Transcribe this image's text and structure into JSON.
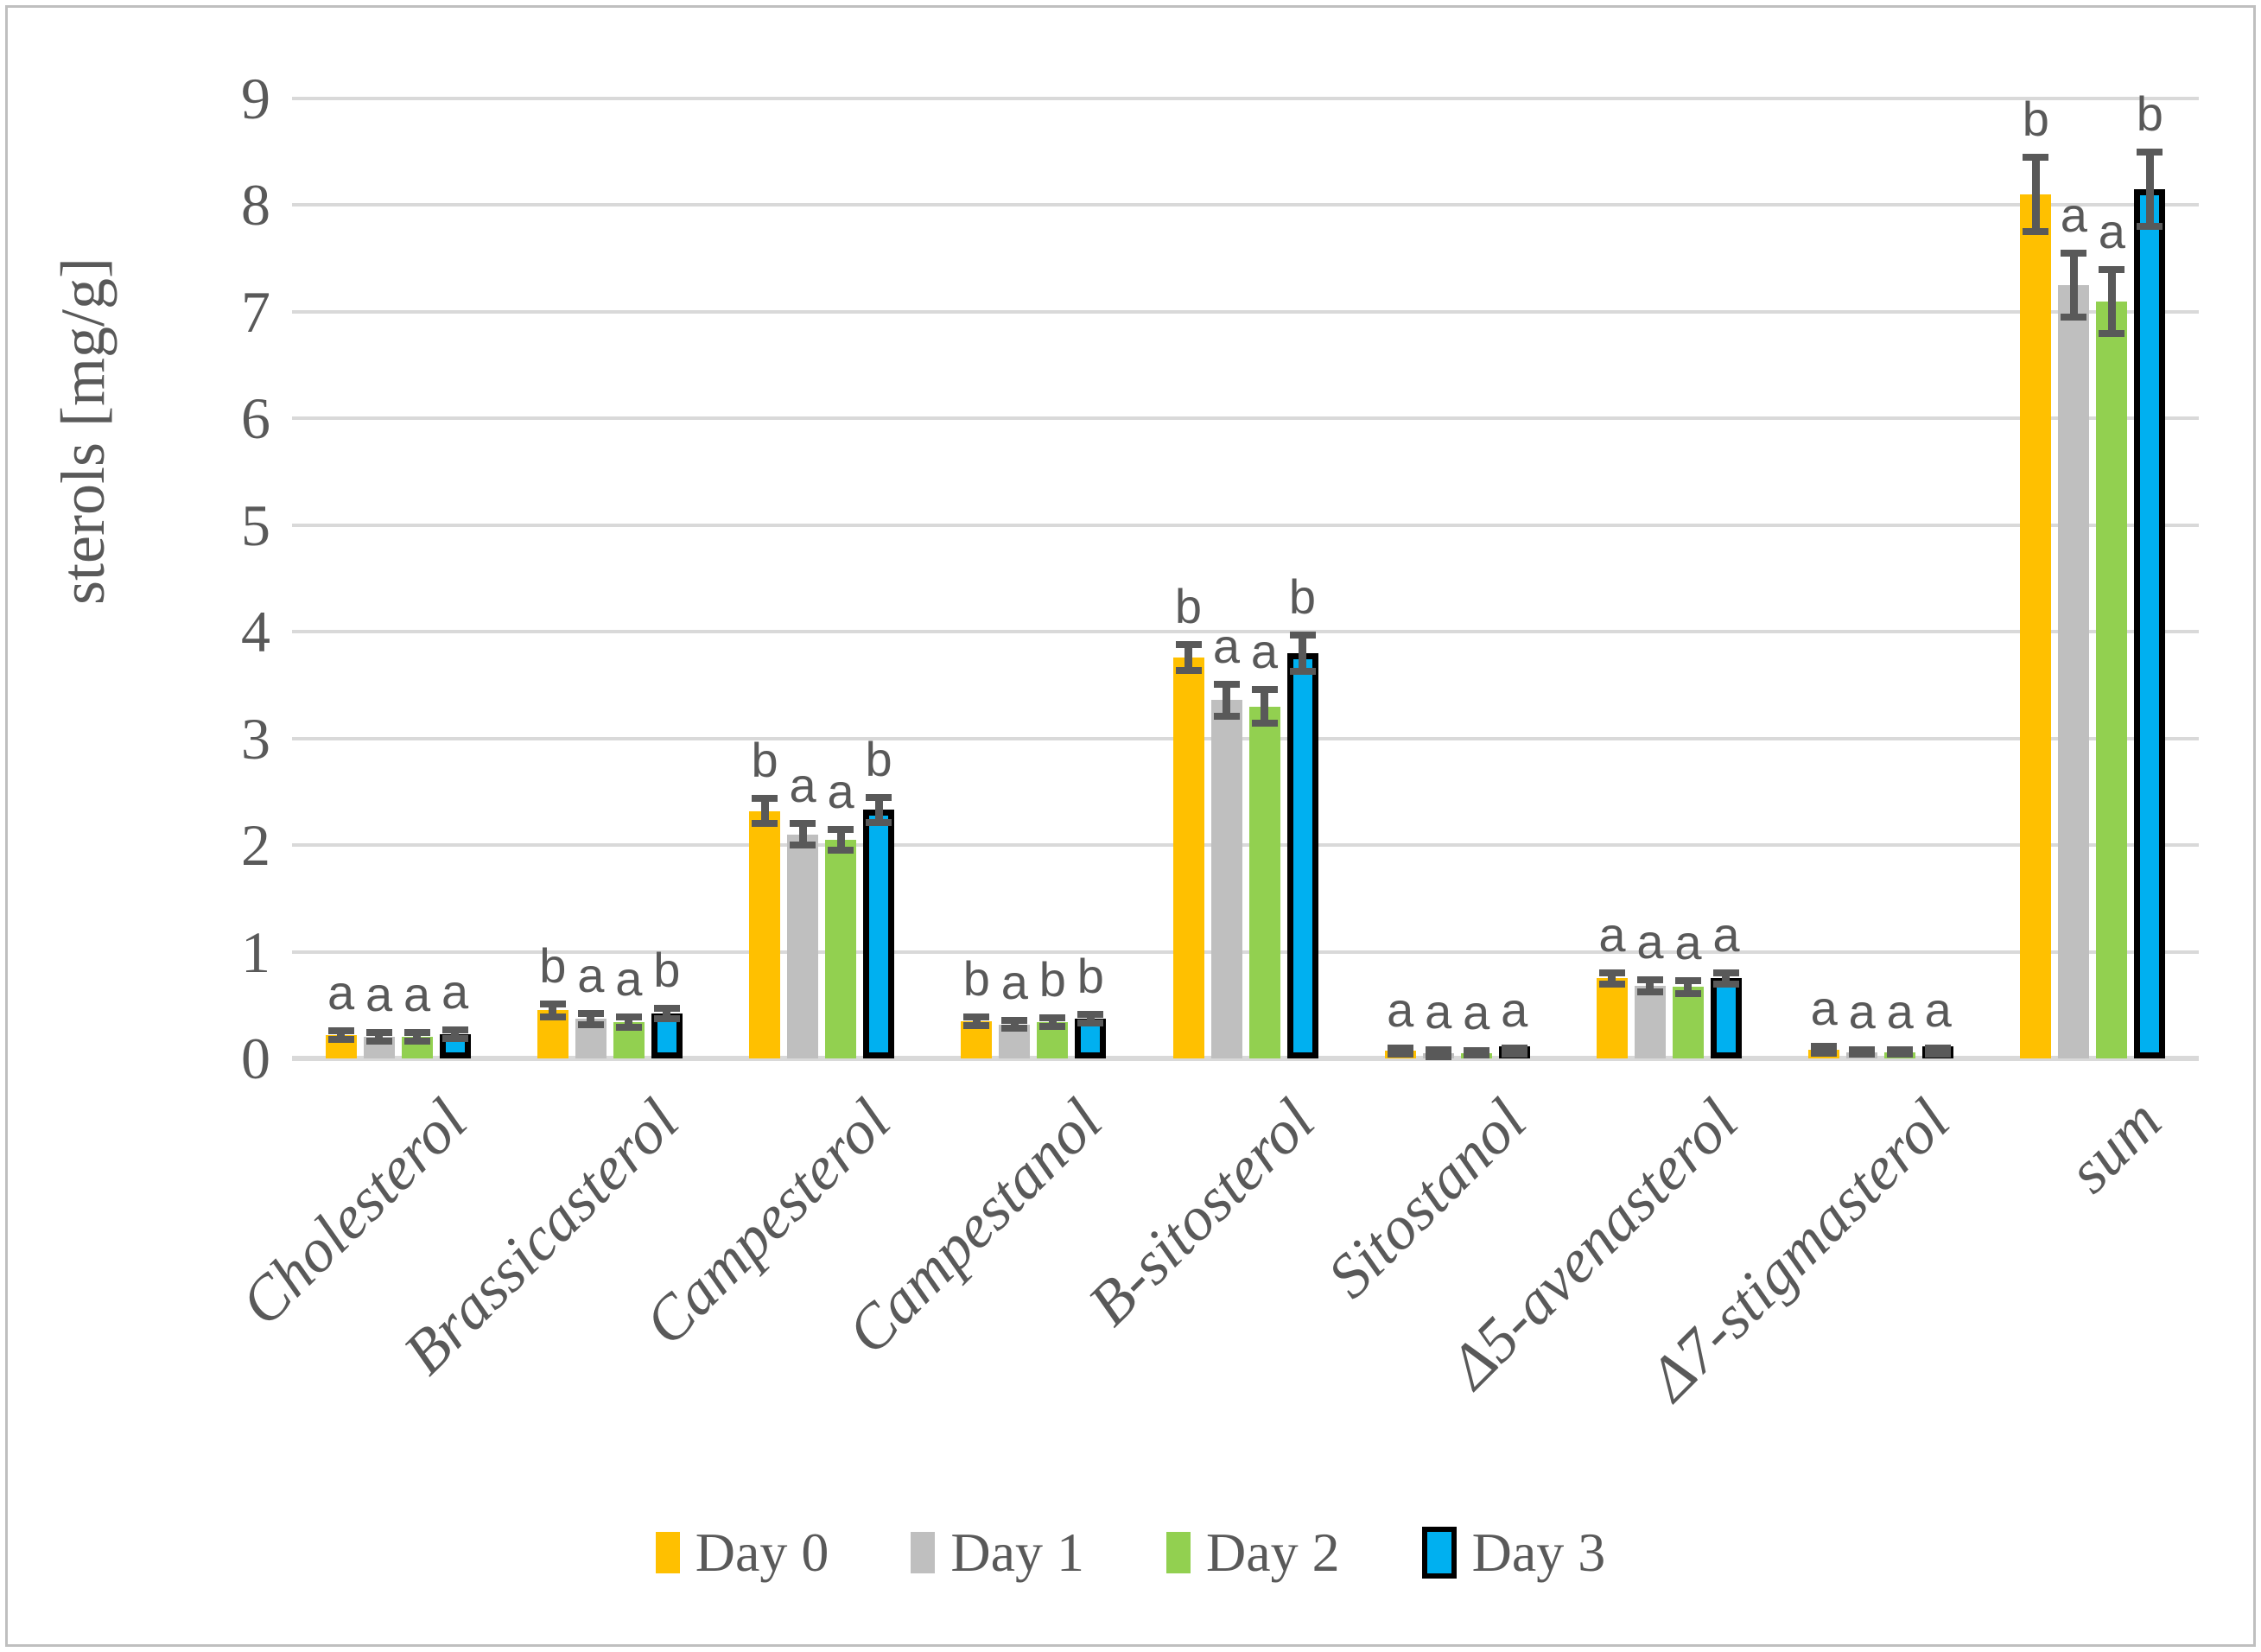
{
  "figure": {
    "background_color": "#FFFFFF",
    "frame_border_color": "#BFBFBF"
  },
  "y_axis": {
    "title": "sterols [mg/g]",
    "tick_labels": [
      "0",
      "1",
      "2",
      "3",
      "4",
      "5",
      "6",
      "7",
      "8",
      "9"
    ],
    "min": 0,
    "max": 9,
    "text_color": "#595959",
    "gridline_color": "#D9D9D9"
  },
  "legend": {
    "position": "bottom",
    "items": [
      {
        "label": "Day 0",
        "color": "#FFC000",
        "border_color": "none"
      },
      {
        "label": "Day 1",
        "color": "#BFBFBF",
        "border_color": "none"
      },
      {
        "label": "Day 2",
        "color": "#92D050",
        "border_color": "none"
      },
      {
        "label": "Day 3",
        "color": "#00B0F0",
        "border_color": "#000000"
      }
    ]
  },
  "error_bar_color": "#595959",
  "chart_data": {
    "type": "bar",
    "title": "",
    "xlabel": "",
    "ylabel": "sterols [mg/g]",
    "ylim": [
      0,
      9
    ],
    "yticks": [
      0,
      1,
      2,
      3,
      4,
      5,
      6,
      7,
      8,
      9
    ],
    "grid": true,
    "legend_position": "bottom",
    "categories": [
      "Cholesterol",
      "Brassicasterol",
      "Campesterol",
      "Campestanol",
      "B-sitosterol",
      "Sitostanol",
      "Δ5-avenasterol",
      "Δ7-stigmasterol",
      "sum"
    ],
    "series": [
      {
        "name": "Day 0",
        "color": "#FFC000",
        "values": [
          0.22,
          0.45,
          2.32,
          0.35,
          3.76,
          0.07,
          0.75,
          0.08,
          8.1
        ],
        "errors_est": [
          0.04,
          0.06,
          0.12,
          0.04,
          0.12,
          0.03,
          0.05,
          0.03,
          0.35
        ],
        "significance_letters": [
          "a",
          "b",
          "b",
          "b",
          "b",
          "a",
          "a",
          "a",
          "b"
        ]
      },
      {
        "name": "Day 1",
        "color": "#BFBFBF",
        "values": [
          0.2,
          0.37,
          2.1,
          0.32,
          3.36,
          0.05,
          0.68,
          0.06,
          7.25
        ],
        "errors_est": [
          0.04,
          0.05,
          0.1,
          0.04,
          0.15,
          0.03,
          0.06,
          0.02,
          0.3
        ],
        "significance_letters": [
          "a",
          "a",
          "a",
          "a",
          "a",
          "a",
          "a",
          "a",
          "a"
        ]
      },
      {
        "name": "Day 2",
        "color": "#92D050",
        "values": [
          0.2,
          0.34,
          2.05,
          0.34,
          3.3,
          0.05,
          0.67,
          0.06,
          7.1
        ],
        "errors_est": [
          0.04,
          0.05,
          0.1,
          0.04,
          0.16,
          0.02,
          0.06,
          0.02,
          0.3
        ],
        "significance_letters": [
          "a",
          "a",
          "a",
          "b",
          "a",
          "a",
          "a",
          "a",
          "a"
        ]
      },
      {
        "name": "Day 3",
        "color": "#00B0F0",
        "bar_border_color": "#000000",
        "values": [
          0.23,
          0.42,
          2.33,
          0.37,
          3.8,
          0.07,
          0.75,
          0.07,
          8.15
        ],
        "errors_est": [
          0.04,
          0.05,
          0.12,
          0.04,
          0.17,
          0.03,
          0.05,
          0.03,
          0.35
        ],
        "significance_letters": [
          "a",
          "b",
          "b",
          "b",
          "b",
          "a",
          "a",
          "a",
          "b"
        ]
      }
    ]
  }
}
